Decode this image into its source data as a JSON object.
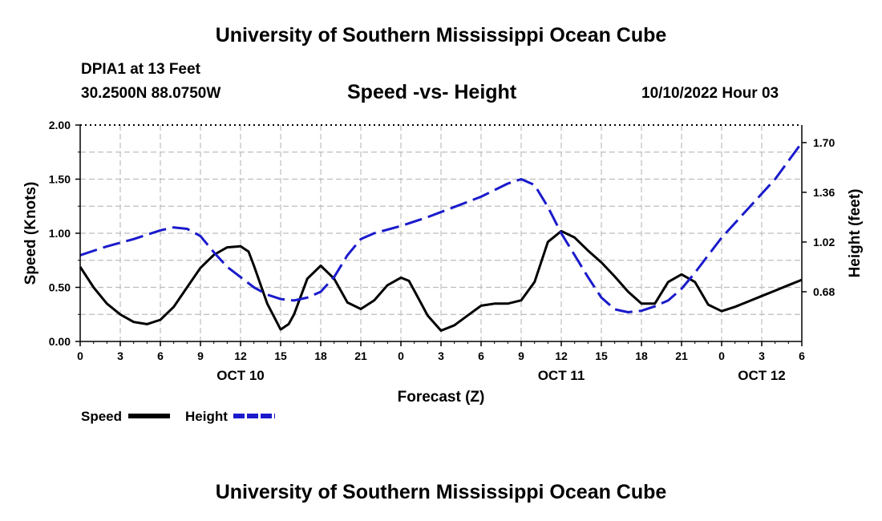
{
  "header": {
    "title": "University of Southern Mississippi Ocean Cube",
    "station": "DPIA1 at 13 Feet",
    "coords": "30.2500N  88.0750W",
    "subtitle": "Speed -vs- Height",
    "datetime": "10/10/2022 Hour 03"
  },
  "footer": {
    "title": "University of Southern Mississippi Ocean Cube"
  },
  "legend": {
    "items": [
      {
        "label": "Speed",
        "color": "#000000",
        "style": "solid"
      },
      {
        "label": "Height",
        "color": "#1a1acc",
        "style": "dashed"
      }
    ]
  },
  "chart_data": {
    "type": "line",
    "title": "Speed -vs- Height",
    "xlabel": "Forecast (Z)",
    "ylabel": "Speed (Knots)",
    "y2label": "Height (feet)",
    "xlim": [
      0,
      54
    ],
    "ylim": [
      0,
      2.0
    ],
    "y2lim": [
      0.34,
      1.82
    ],
    "grid": true,
    "x_ticks": [
      {
        "x": 0,
        "label": "0"
      },
      {
        "x": 3,
        "label": "3"
      },
      {
        "x": 6,
        "label": "6"
      },
      {
        "x": 9,
        "label": "9"
      },
      {
        "x": 12,
        "label": "12"
      },
      {
        "x": 15,
        "label": "15"
      },
      {
        "x": 18,
        "label": "18"
      },
      {
        "x": 21,
        "label": "21"
      },
      {
        "x": 24,
        "label": "0"
      },
      {
        "x": 27,
        "label": "3"
      },
      {
        "x": 30,
        "label": "6"
      },
      {
        "x": 33,
        "label": "9"
      },
      {
        "x": 36,
        "label": "12"
      },
      {
        "x": 39,
        "label": "15"
      },
      {
        "x": 42,
        "label": "18"
      },
      {
        "x": 45,
        "label": "21"
      },
      {
        "x": 48,
        "label": "0"
      },
      {
        "x": 51,
        "label": "3"
      },
      {
        "x": 54,
        "label": "6"
      }
    ],
    "date_labels": [
      {
        "x": 12,
        "label": "OCT 10"
      },
      {
        "x": 36,
        "label": "OCT 11"
      },
      {
        "x": 51,
        "label": "OCT 12"
      }
    ],
    "y_ticks": [
      {
        "y": 0.0,
        "label": "0.00"
      },
      {
        "y": 0.5,
        "label": "0.50"
      },
      {
        "y": 1.0,
        "label": "1.00"
      },
      {
        "y": 1.5,
        "label": "1.50"
      },
      {
        "y": 2.0,
        "label": "2.00"
      }
    ],
    "y2_ticks": [
      {
        "y": 0.68,
        "label": "0.68"
      },
      {
        "y": 1.02,
        "label": "1.02"
      },
      {
        "y": 1.36,
        "label": "1.36"
      },
      {
        "y": 1.7,
        "label": "1.70"
      }
    ],
    "series": [
      {
        "name": "Speed",
        "axis": "left",
        "color": "#000000",
        "dash": "",
        "x": [
          0,
          1,
          2,
          3,
          4,
          5,
          6,
          7,
          8,
          9,
          10,
          11,
          12,
          12.6,
          13,
          14,
          15,
          15.6,
          16,
          17,
          18,
          19,
          20,
          21,
          22,
          23,
          24,
          24.6,
          25,
          26,
          27,
          28,
          29,
          30,
          31,
          32,
          33,
          34,
          35,
          36,
          37,
          38,
          39,
          40,
          41,
          42,
          43,
          44,
          45,
          46,
          47,
          48,
          49,
          50,
          51,
          52,
          53,
          54
        ],
        "y": [
          0.69,
          0.5,
          0.35,
          0.25,
          0.18,
          0.16,
          0.2,
          0.32,
          0.5,
          0.68,
          0.8,
          0.87,
          0.88,
          0.83,
          0.7,
          0.35,
          0.11,
          0.16,
          0.25,
          0.58,
          0.7,
          0.58,
          0.36,
          0.3,
          0.38,
          0.52,
          0.59,
          0.56,
          0.47,
          0.24,
          0.1,
          0.15,
          0.24,
          0.33,
          0.35,
          0.35,
          0.38,
          0.55,
          0.92,
          1.02,
          0.96,
          0.84,
          0.73,
          0.6,
          0.46,
          0.35,
          0.35,
          0.55,
          0.62,
          0.55,
          0.34,
          0.28,
          0.32,
          0.37,
          0.42,
          0.47,
          0.52,
          0.57
        ]
      },
      {
        "name": "Height",
        "axis": "right",
        "color": "#1a1acc",
        "dash": "22,8",
        "x": [
          0,
          2,
          4,
          6,
          7,
          8,
          9,
          10,
          11,
          12,
          13,
          14,
          15,
          16,
          17,
          18,
          19,
          20,
          21,
          22,
          24,
          26,
          28,
          30,
          32,
          33,
          34,
          35,
          36,
          37,
          38,
          39,
          40,
          41,
          42,
          43,
          44,
          45,
          46,
          47,
          48,
          50,
          52,
          54
        ],
        "y": [
          0.93,
          0.99,
          1.04,
          1.1,
          1.12,
          1.11,
          1.06,
          0.95,
          0.85,
          0.78,
          0.71,
          0.66,
          0.63,
          0.62,
          0.64,
          0.68,
          0.78,
          0.93,
          1.04,
          1.08,
          1.13,
          1.19,
          1.26,
          1.33,
          1.42,
          1.45,
          1.41,
          1.26,
          1.08,
          0.93,
          0.78,
          0.64,
          0.56,
          0.54,
          0.55,
          0.58,
          0.62,
          0.7,
          0.81,
          0.93,
          1.05,
          1.25,
          1.45,
          1.7
        ]
      }
    ]
  }
}
